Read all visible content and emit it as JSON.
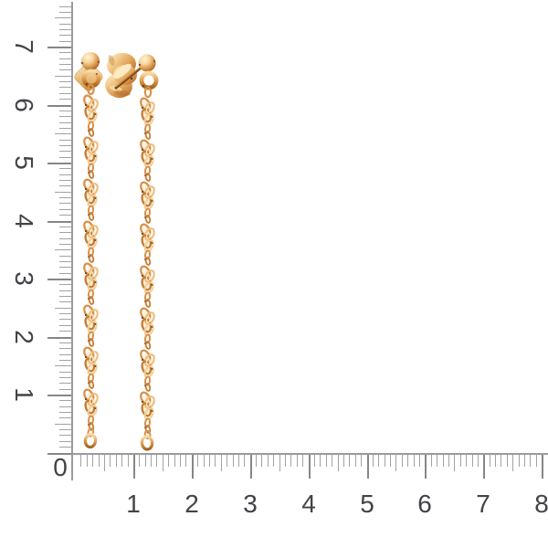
{
  "scene": {
    "type": "product-photo",
    "subject": "Pair of rose-gold ball stud earrings with long twisted Singapore-chain drops photographed on a white background against a centimeter ruler",
    "background_color": "#ffffff"
  },
  "ruler": {
    "unit": "cm",
    "corner_label": "0",
    "horizontal_numbers": [
      "1",
      "2",
      "3",
      "4",
      "5",
      "6",
      "7",
      "8"
    ],
    "vertical_numbers": [
      "1",
      "2",
      "3",
      "4",
      "5",
      "6",
      "7"
    ],
    "line_color": "#9b9b9e",
    "minor_tick_color": "#a2a2a6",
    "major_tick_color": "#86868a",
    "number_color": "#434347"
  },
  "earrings": {
    "metal": "rose gold",
    "left_view": "front with ball stud, backing plate and jump ring",
    "right_view": "back with butterfly clutch, post, ball and jump ring",
    "gradients": {
      "ball": [
        "#fdf2d8",
        "#f6d7a0",
        "#e2a45a",
        "#bf7a33",
        "#8f521d"
      ],
      "plate": [
        "#fbe7c0",
        "#f0c98c",
        "#dda057",
        "#c07c36"
      ],
      "clutch": [
        "#fdeecb",
        "#f3cf92",
        "#e0a258",
        "#c57e38",
        "#9a5c22"
      ],
      "ring": [
        "#f7dca8",
        "#dd9c50",
        "#a5641f"
      ]
    },
    "chain_palette": {
      "light": "#efbd7e",
      "light2": "#f3cf96",
      "mid": "#d8914a",
      "deep": "#c57c34",
      "highlight": "#f9e6c4",
      "body": "#f6ddb2",
      "speck": "#4e3214",
      "post_dark": "#7e4418",
      "post_light": "#d99a50"
    }
  }
}
